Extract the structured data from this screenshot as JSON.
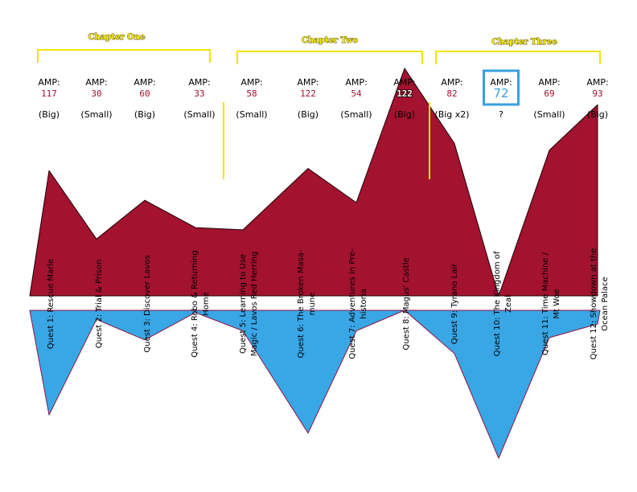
{
  "chapters": [
    {
      "label": "Chapter One"
    },
    {
      "label": "Chapter Two"
    },
    {
      "label": "Chapter Three"
    }
  ],
  "colors": {
    "chapter_bracket": "#f2e500",
    "amp_value": "#a3122f",
    "highlight": "#3a9fe0"
  },
  "chart_data": {
    "type": "area",
    "amp_label": "AMP:",
    "amp_values": [
      117,
      30,
      60,
      33,
      58,
      122,
      54,
      122,
      82,
      72,
      69,
      93
    ],
    "sizes": [
      "(Big)",
      "(Small)",
      "(Big)",
      "(Small)",
      "(Small)",
      "(Big)",
      "(Small)",
      "(Big)",
      "(Big x2)",
      "?",
      "(Small)",
      "(Big)"
    ],
    "highlight_index": 9,
    "categories": [
      [
        "Quest 1: Rescue Marle"
      ],
      [
        "Quest 2: Trial & Prison"
      ],
      [
        "Quest 3: Discover Lavos"
      ],
      [
        "Quest 4: Robo & Returning",
        "Home"
      ],
      [
        "Quest 5: Learning to Use",
        "Magic / Lavos Red Herring"
      ],
      [
        "Quest 6: The Broken Masa-",
        "mune"
      ],
      [
        "Quest 7: Adventures in Pre-",
        "historia"
      ],
      [
        "Quest 8: Magus' Castle"
      ],
      [
        "Quest 9: Tyrano Lair"
      ],
      [
        "Quest 10: The Kingdom of",
        "Zeal"
      ],
      [
        "Quest 11: Time Machine /",
        "Mt Woe"
      ],
      [
        "Quest 12: Showdown at the",
        "Ocean Palace"
      ]
    ],
    "series": [
      {
        "color": "#a3122f",
        "values": [
          55,
          25,
          42,
          30,
          29,
          56,
          41,
          100,
          67,
          0,
          64,
          84
        ]
      },
      {
        "color": "#39a6e6",
        "values": [
          46,
          4,
          13,
          1,
          9,
          54,
          9,
          0,
          19,
          65,
          12,
          6
        ]
      }
    ]
  }
}
